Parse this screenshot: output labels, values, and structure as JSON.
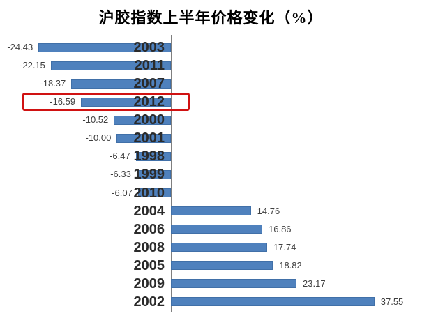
{
  "title": "沪胶指数上半年价格变化（%）",
  "chart_data": {
    "type": "bar",
    "orientation": "horizontal",
    "title": "沪胶指数上半年价格变化（%）",
    "categories": [
      "2003",
      "2011",
      "2007",
      "2012",
      "2000",
      "2001",
      "1998",
      "1999",
      "2010",
      "2004",
      "2006",
      "2008",
      "2005",
      "2009",
      "2002"
    ],
    "values": [
      -24.43,
      -22.15,
      -18.37,
      -16.59,
      -10.52,
      -10.0,
      -6.47,
      -6.33,
      -6.07,
      14.76,
      16.86,
      17.74,
      18.82,
      23.17,
      37.55
    ],
    "value_labels": [
      "-24.43",
      "-22.15",
      "-18.37",
      "-16.59",
      "-10.52",
      "-10.00",
      "-6.47",
      "-6.33",
      "-6.07",
      "14.76",
      "16.86",
      "17.74",
      "18.82",
      "23.17",
      "37.55"
    ],
    "xlim": [
      -30,
      45
    ],
    "grid": false,
    "legend": "none",
    "bar_color": "#4f81bd",
    "axis_color": "#7f7f7f",
    "highlight": {
      "category": "2012",
      "box_color": "#d01212"
    }
  }
}
